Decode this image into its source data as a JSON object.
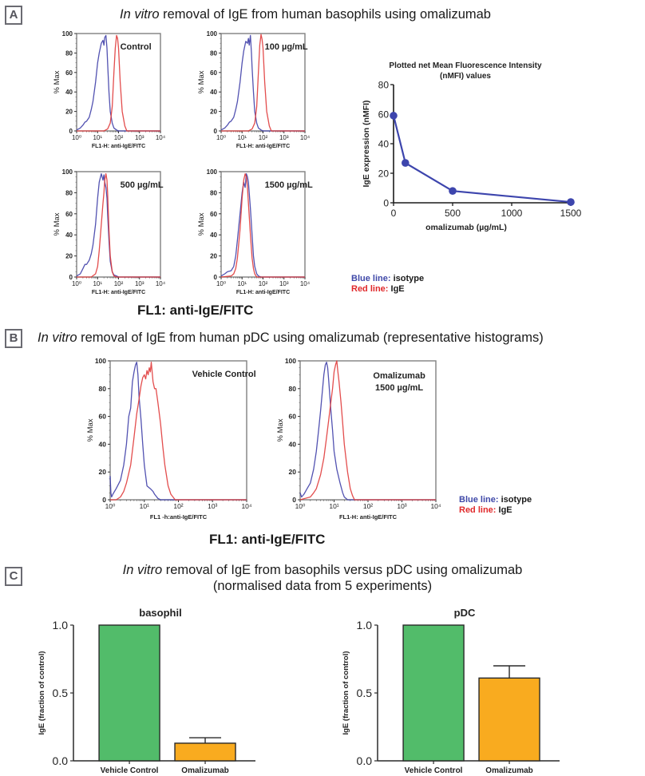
{
  "colors": {
    "isotype_blue": "#3f3fa8",
    "ige_red": "#e03a3a",
    "nmfi_line": "#3d45ad",
    "bar_green": "#52bc6a",
    "bar_orange": "#f9ab1f",
    "badge_gray": "#6b6b72"
  },
  "panel_a": {
    "badge": "A",
    "title_italic": "In vitro",
    "title_rest": " removal of IgE from human basophils using omalizumab",
    "shared_xlabel": "FL1: anti-IgE/FITC",
    "legend": {
      "blue_label": "Blue line:",
      "blue_text": " isotype",
      "red_label": "Red line:",
      "red_text": " IgE"
    }
  },
  "panel_b": {
    "badge": "B",
    "title_italic": "In vitro",
    "title_rest": " removal of IgE from human pDC using omalizumab (representative histograms)",
    "shared_xlabel": "FL1: anti-IgE/FITC",
    "legend": {
      "blue_label": "Blue line:",
      "blue_text": " isotype",
      "red_label": "Red line:",
      "red_text": " IgE"
    }
  },
  "panel_c": {
    "badge": "C",
    "title_italic": "In vitro",
    "title_rest": " removal of IgE from basophils versus pDC using omalizumab",
    "subtitle": "(normalised data from 5 experiments)"
  },
  "chart_data": [
    {
      "id": "a-control",
      "type": "line",
      "title": "Control",
      "xlabel": "FL1-H: anti-IgE/FITC",
      "ylabel": "% Max",
      "xscale": "log",
      "xlim": [
        1,
        10000
      ],
      "ylim": [
        0,
        100
      ],
      "xticks": [
        "10⁰",
        "10¹",
        "10²",
        "10³",
        "10⁴"
      ],
      "yticks": [
        "0",
        "20",
        "40",
        "60",
        "80",
        "100"
      ],
      "series": [
        {
          "name": "isotype",
          "color": "blue",
          "x": [
            1,
            1.5,
            2,
            2.5,
            3,
            4,
            5,
            6,
            8,
            10,
            12,
            15,
            18,
            20,
            22,
            25,
            28,
            30,
            35,
            40,
            50,
            60,
            80,
            100,
            10000
          ],
          "y": [
            1,
            3,
            6,
            9,
            10,
            14,
            22,
            30,
            50,
            70,
            80,
            90,
            93,
            88,
            96,
            98,
            85,
            70,
            40,
            20,
            8,
            3,
            1,
            0,
            0
          ]
        },
        {
          "name": "IgE",
          "color": "red",
          "x": [
            1,
            20,
            30,
            40,
            50,
            60,
            70,
            80,
            90,
            100,
            120,
            150,
            200,
            250,
            10000
          ],
          "y": [
            0,
            0,
            2,
            8,
            25,
            60,
            85,
            98,
            95,
            85,
            50,
            20,
            5,
            0,
            0
          ]
        }
      ]
    },
    {
      "id": "a-100",
      "type": "line",
      "title": "100 µg/mL",
      "xlabel": "FL1-H: anti-IgE/FITC",
      "ylabel": "% Max",
      "xscale": "log",
      "xlim": [
        1,
        10000
      ],
      "ylim": [
        0,
        100
      ],
      "xticks": [
        "10⁰",
        "10¹",
        "10²",
        "10³",
        "10⁴"
      ],
      "yticks": [
        "0",
        "20",
        "40",
        "60",
        "80",
        "100"
      ],
      "series": [
        {
          "name": "isotype",
          "color": "blue",
          "x": [
            1,
            1.5,
            2,
            2.5,
            3,
            4,
            5,
            6,
            8,
            10,
            12,
            15,
            18,
            20,
            22,
            25,
            28,
            30,
            35,
            40,
            50,
            60,
            80,
            100,
            10000
          ],
          "y": [
            1,
            3,
            6,
            9,
            10,
            14,
            22,
            30,
            50,
            70,
            82,
            92,
            90,
            95,
            88,
            98,
            80,
            65,
            40,
            20,
            8,
            3,
            1,
            0,
            0
          ]
        },
        {
          "name": "IgE",
          "color": "red",
          "x": [
            1,
            20,
            30,
            40,
            50,
            60,
            70,
            80,
            90,
            100,
            120,
            150,
            200,
            250,
            10000
          ],
          "y": [
            0,
            0,
            2,
            8,
            25,
            60,
            88,
            99,
            94,
            85,
            50,
            20,
            5,
            0,
            0
          ]
        }
      ]
    },
    {
      "id": "a-500",
      "type": "line",
      "title": "500 µg/mL",
      "xlabel": "FL1-H: anti-IgE/FITC",
      "ylabel": "% Max",
      "xscale": "log",
      "xlim": [
        1,
        10000
      ],
      "ylim": [
        0,
        100
      ],
      "xticks": [
        "10⁰",
        "10¹",
        "10²",
        "10³",
        "10⁴"
      ],
      "yticks": [
        "0",
        "20",
        "40",
        "60",
        "80",
        "100"
      ],
      "series": [
        {
          "name": "isotype",
          "color": "blue",
          "x": [
            1,
            1.5,
            2,
            2.5,
            3,
            4,
            5,
            6,
            8,
            10,
            12,
            15,
            18,
            20,
            22,
            25,
            28,
            30,
            35,
            40,
            50,
            60,
            80,
            100,
            10000
          ],
          "y": [
            1,
            3,
            8,
            12,
            12,
            16,
            22,
            30,
            50,
            75,
            90,
            98,
            92,
            97,
            90,
            85,
            75,
            60,
            35,
            15,
            5,
            2,
            1,
            0,
            0
          ]
        },
        {
          "name": "IgE",
          "color": "red",
          "x": [
            1,
            5,
            8,
            10,
            12,
            15,
            18,
            20,
            22,
            25,
            28,
            30,
            35,
            40,
            50,
            60,
            80,
            10000
          ],
          "y": [
            0,
            0,
            3,
            10,
            25,
            50,
            70,
            80,
            92,
            98,
            92,
            80,
            45,
            20,
            5,
            1,
            0,
            0
          ]
        }
      ]
    },
    {
      "id": "a-1500",
      "type": "line",
      "title": "1500 µg/mL",
      "xlabel": "FL1-H: anti-IgE/FITC",
      "ylabel": "% Max",
      "xscale": "log",
      "xlim": [
        1,
        10000
      ],
      "ylim": [
        0,
        100
      ],
      "xticks": [
        "10⁰",
        "10¹",
        "10²",
        "10³",
        "10⁴"
      ],
      "yticks": [
        "0",
        "20",
        "40",
        "60",
        "80",
        "100"
      ],
      "series": [
        {
          "name": "isotype",
          "color": "blue",
          "x": [
            1,
            1.5,
            2,
            3,
            4,
            5,
            6,
            8,
            10,
            12,
            14,
            16,
            18,
            20,
            22,
            25,
            30,
            35,
            40,
            50,
            60,
            80,
            10000
          ],
          "y": [
            1,
            3,
            5,
            6,
            10,
            20,
            35,
            60,
            80,
            90,
            85,
            98,
            95,
            90,
            80,
            65,
            40,
            20,
            10,
            3,
            1,
            0,
            0
          ]
        },
        {
          "name": "IgE",
          "color": "red",
          "x": [
            1,
            3,
            4,
            5,
            6,
            8,
            10,
            12,
            14,
            16,
            18,
            20,
            25,
            30,
            35,
            40,
            50,
            10000
          ],
          "y": [
            0,
            1,
            3,
            8,
            18,
            45,
            75,
            92,
            98,
            95,
            85,
            70,
            40,
            18,
            8,
            3,
            0,
            0
          ]
        }
      ]
    },
    {
      "id": "a-nmfi",
      "type": "line",
      "title": "Plotted net Mean Fluorescence Intensity (nMFI) values",
      "title_lines": [
        "Plotted net Mean Fluorescence Intensity",
        "(nMFI) values"
      ],
      "xlabel": "omalizumab (µg/mL)",
      "ylabel": "IgE expression (nMFI)",
      "xlim": [
        0,
        1500
      ],
      "ylim": [
        0,
        80
      ],
      "xticks": [
        0,
        500,
        1000,
        1500
      ],
      "yticks": [
        0,
        20,
        40,
        60,
        80
      ],
      "x": [
        0,
        100,
        500,
        1500
      ],
      "y": [
        59,
        27,
        8,
        0.5
      ]
    },
    {
      "id": "b-vehicle",
      "type": "line",
      "title": "Vehicle Control",
      "xlabel": "FL1 -h:anti-IgE/FITC",
      "ylabel": "% Max",
      "xscale": "log",
      "xlim": [
        1,
        10000
      ],
      "ylim": [
        0,
        100
      ],
      "xticks": [
        "10⁰",
        "10¹",
        "10²",
        "10³",
        "10⁴"
      ],
      "yticks": [
        "0",
        "20",
        "40",
        "60",
        "80",
        "100"
      ],
      "series": [
        {
          "name": "isotype",
          "color": "blue",
          "x": [
            1,
            1.05,
            1.1,
            1.2,
            1.5,
            2,
            2.5,
            3,
            3.5,
            4,
            4.5,
            5,
            5.5,
            6,
            6.5,
            7,
            8,
            9,
            10,
            12,
            15,
            18,
            20,
            25,
            30,
            10000
          ],
          "y": [
            17,
            5,
            2,
            4,
            8,
            14,
            25,
            40,
            60,
            66,
            85,
            92,
            97,
            99,
            90,
            75,
            58,
            40,
            25,
            10,
            8,
            6,
            4,
            1,
            0,
            0
          ]
        },
        {
          "name": "IgE",
          "color": "red",
          "x": [
            1,
            1.5,
            2,
            2.5,
            3,
            4,
            5,
            6,
            7,
            8,
            9,
            10,
            11,
            12,
            13,
            14,
            15,
            16,
            18,
            20,
            22,
            25,
            30,
            35,
            40,
            50,
            60,
            80,
            10000
          ],
          "y": [
            0,
            0,
            2,
            6,
            12,
            25,
            45,
            62,
            72,
            82,
            88,
            90,
            87,
            93,
            90,
            95,
            92,
            99,
            85,
            80,
            80,
            70,
            55,
            38,
            25,
            10,
            4,
            0,
            0
          ]
        }
      ]
    },
    {
      "id": "b-omalizumab",
      "type": "line",
      "title": "Omalizumab 1500 µg/mL",
      "title_lines": [
        "Omalizumab",
        "1500 µg/mL"
      ],
      "xlabel": "FL1-H: anti-IgE/FITC",
      "ylabel": "% Max",
      "xscale": "log",
      "xlim": [
        1,
        10000
      ],
      "ylim": [
        0,
        100
      ],
      "xticks": [
        "10⁰",
        "10¹",
        "10²",
        "10³",
        "10⁴"
      ],
      "yticks": [
        "0",
        "20",
        "40",
        "60",
        "80",
        "100"
      ],
      "series": [
        {
          "name": "isotype",
          "color": "blue",
          "x": [
            1,
            1.1,
            1.3,
            1.6,
            2,
            2.5,
            3,
            3.5,
            4,
            4.5,
            5,
            5.5,
            6,
            6.5,
            7,
            8,
            9,
            10,
            12,
            15,
            18,
            20,
            25,
            10000
          ],
          "y": [
            5,
            2,
            4,
            8,
            12,
            22,
            35,
            50,
            64,
            78,
            90,
            97,
            99,
            95,
            85,
            65,
            50,
            35,
            22,
            12,
            5,
            2,
            0,
            0
          ]
        },
        {
          "name": "IgE",
          "color": "red",
          "x": [
            1,
            2,
            2.5,
            3,
            4,
            5,
            6,
            7,
            8,
            9,
            10,
            11,
            12,
            13,
            14,
            16,
            18,
            20,
            25,
            30,
            35,
            40,
            10000
          ],
          "y": [
            0,
            2,
            5,
            8,
            18,
            30,
            45,
            58,
            70,
            80,
            92,
            97,
            100,
            92,
            85,
            70,
            55,
            40,
            20,
            8,
            3,
            0,
            0
          ]
        }
      ]
    },
    {
      "id": "c-basophil",
      "type": "bar",
      "title": "basophil",
      "ylabel": "IgE (fraction of control)",
      "categories": [
        "Vehicle Control",
        "Omalizumab"
      ],
      "values": [
        1.0,
        0.13
      ],
      "errors": [
        0,
        0.04
      ],
      "colors": [
        "green",
        "orange"
      ],
      "ylim": [
        0,
        1.0
      ],
      "yticks": [
        "0.0",
        "0.5",
        "1.0"
      ]
    },
    {
      "id": "c-pdc",
      "type": "bar",
      "title": "pDC",
      "ylabel": "IgE (fraction of control)",
      "categories": [
        "Vehicle Control",
        "Omalizumab"
      ],
      "values": [
        1.0,
        0.61
      ],
      "errors": [
        0,
        0.09
      ],
      "colors": [
        "green",
        "orange"
      ],
      "ylim": [
        0,
        1.0
      ],
      "yticks": [
        "0.0",
        "0.5",
        "1.0"
      ]
    }
  ]
}
